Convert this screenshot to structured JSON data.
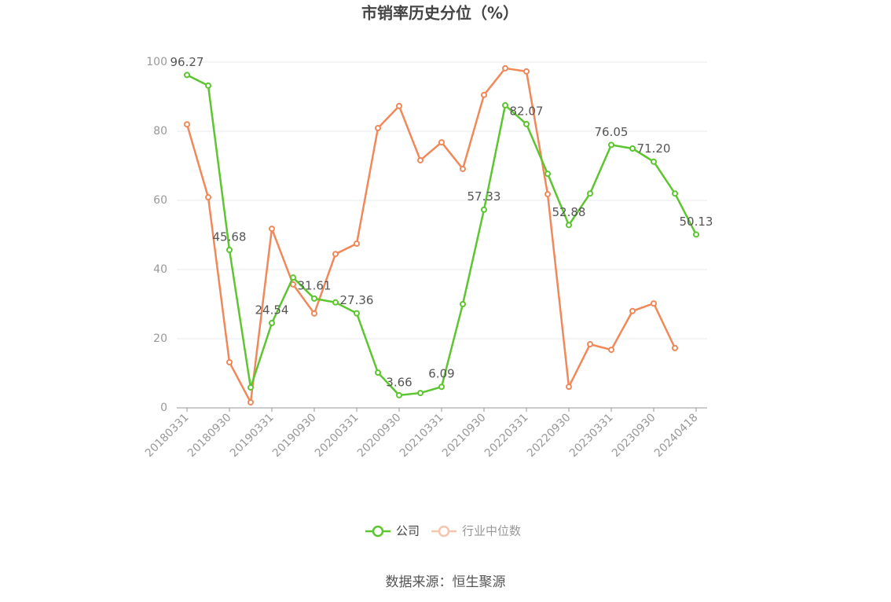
{
  "chart_data": {
    "type": "line",
    "title": "市销率历史分位（%）",
    "categories": [
      "20180331",
      null,
      "20180930",
      null,
      "20190331",
      null,
      "20190930",
      null,
      "20200331",
      null,
      "20200930",
      null,
      "20210331",
      null,
      "20210930",
      null,
      "20220331",
      null,
      "20220930",
      null,
      "20230331",
      null,
      "20230930",
      null,
      "20240418"
    ],
    "series": [
      {
        "name": "公司",
        "color": "#5cc52f",
        "values": [
          96.27,
          93.2,
          45.68,
          5.9,
          24.54,
          37.7,
          31.61,
          30.5,
          27.36,
          10.2,
          3.66,
          4.3,
          6.09,
          30.0,
          57.33,
          87.5,
          82.07,
          67.7,
          52.88,
          62.0,
          76.05,
          75.0,
          71.2,
          62.0,
          50.13
        ],
        "value_labels": [
          "96.27",
          null,
          "45.68",
          null,
          "24.54",
          null,
          "31.61",
          null,
          "27.36",
          null,
          "3.66",
          null,
          "6.09",
          null,
          "57.33",
          null,
          "82.07",
          null,
          "52.88",
          null,
          "76.05",
          null,
          "71.20",
          null,
          "50.13"
        ]
      },
      {
        "name": "行业中位数",
        "color": "#f0885a",
        "values": [
          82.0,
          60.9,
          13.2,
          1.6,
          51.8,
          35.7,
          27.3,
          44.5,
          47.5,
          80.9,
          87.3,
          71.6,
          76.8,
          69.1,
          90.5,
          98.2,
          97.3,
          61.8,
          6.1,
          18.4,
          16.8,
          28.0,
          30.2,
          17.3,
          null
        ]
      }
    ],
    "ylim": [
      0,
      100
    ],
    "yticks": [
      0,
      20,
      40,
      60,
      80,
      100
    ],
    "grid": true,
    "legend": "bottom",
    "source": "数据来源：恒生聚源"
  }
}
